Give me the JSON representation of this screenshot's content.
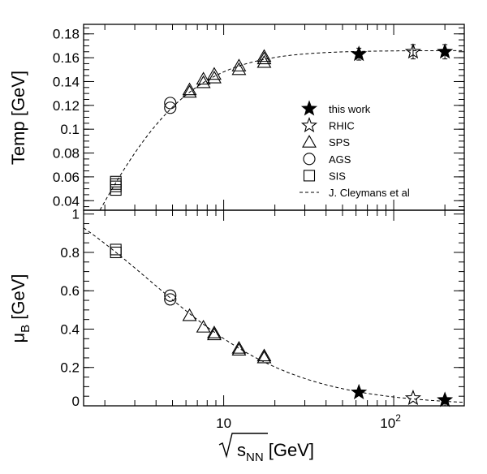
{
  "chart_data": [
    {
      "type": "scatter",
      "panel": "top",
      "ylabel": "Temp [GeV]",
      "xscale": "log",
      "xlim": [
        1.5,
        260
      ],
      "ylim": [
        0.032,
        0.188
      ],
      "yticks": [
        "0.04",
        "0.06",
        "0.08",
        "0.1",
        "0.12",
        "0.14",
        "0.16",
        "0.18"
      ],
      "legend": {
        "placement": "right-center",
        "entries": [
          {
            "label": "this work",
            "marker": "star-filled"
          },
          {
            "label": "RHIC",
            "marker": "star-open"
          },
          {
            "label": "SPS",
            "marker": "triangle-open"
          },
          {
            "label": "AGS",
            "marker": "circle-open"
          },
          {
            "label": "SIS",
            "marker": "square-open"
          },
          {
            "label": "J. Cleymans et al",
            "marker": "dashed-line"
          }
        ]
      },
      "series": [
        {
          "marker": "star-filled",
          "points": [
            [
              62.4,
              0.163,
              0.005
            ],
            [
              200,
              0.165,
              0.006
            ]
          ]
        },
        {
          "marker": "star-open",
          "points": [
            [
              130,
              0.165,
              0.006
            ]
          ]
        },
        {
          "marker": "triangle-open",
          "points": [
            [
              6.3,
              0.133
            ],
            [
              6.3,
              0.131
            ],
            [
              7.6,
              0.142
            ],
            [
              7.6,
              0.139
            ],
            [
              8.8,
              0.146
            ],
            [
              8.8,
              0.143
            ],
            [
              12.3,
              0.153
            ],
            [
              12.3,
              0.15
            ],
            [
              17.3,
              0.159
            ],
            [
              17.3,
              0.156
            ],
            [
              17.3,
              0.161
            ]
          ]
        },
        {
          "marker": "circle-open",
          "points": [
            [
              4.85,
              0.122
            ],
            [
              4.85,
              0.118
            ]
          ]
        },
        {
          "marker": "square-open",
          "points": [
            [
              2.32,
              0.056
            ],
            [
              2.32,
              0.054
            ],
            [
              2.32,
              0.052
            ],
            [
              2.32,
              0.049
            ]
          ]
        }
      ]
    },
    {
      "type": "scatter",
      "panel": "bottom",
      "ylabel": "μ_B [GeV]",
      "xlabel": "√s_NN [GeV]",
      "xscale": "log",
      "xlim": [
        1.5,
        260
      ],
      "ylim": [
        0,
        1.02
      ],
      "yticks": [
        "0",
        "0.2",
        "0.4",
        "0.6",
        "0.8",
        "1"
      ],
      "xticks": [
        {
          "value": 10,
          "label": "10"
        },
        {
          "value": 100,
          "label": "10",
          "sup": "2"
        }
      ],
      "series": [
        {
          "marker": "star-filled",
          "points": [
            [
              62.4,
              0.07
            ],
            [
              200,
              0.03
            ]
          ]
        },
        {
          "marker": "star-open",
          "points": [
            [
              130,
              0.04
            ]
          ]
        },
        {
          "marker": "triangle-open",
          "points": [
            [
              6.3,
              0.47
            ],
            [
              7.6,
              0.41
            ],
            [
              8.8,
              0.38
            ],
            [
              8.8,
              0.37
            ],
            [
              12.3,
              0.3
            ],
            [
              12.3,
              0.29
            ],
            [
              17.3,
              0.26
            ],
            [
              17.3,
              0.25
            ]
          ]
        },
        {
          "marker": "circle-open",
          "points": [
            [
              4.85,
              0.575
            ],
            [
              4.85,
              0.555
            ]
          ]
        },
        {
          "marker": "square-open",
          "points": [
            [
              2.32,
              0.815
            ],
            [
              2.32,
              0.8
            ]
          ]
        }
      ]
    }
  ]
}
